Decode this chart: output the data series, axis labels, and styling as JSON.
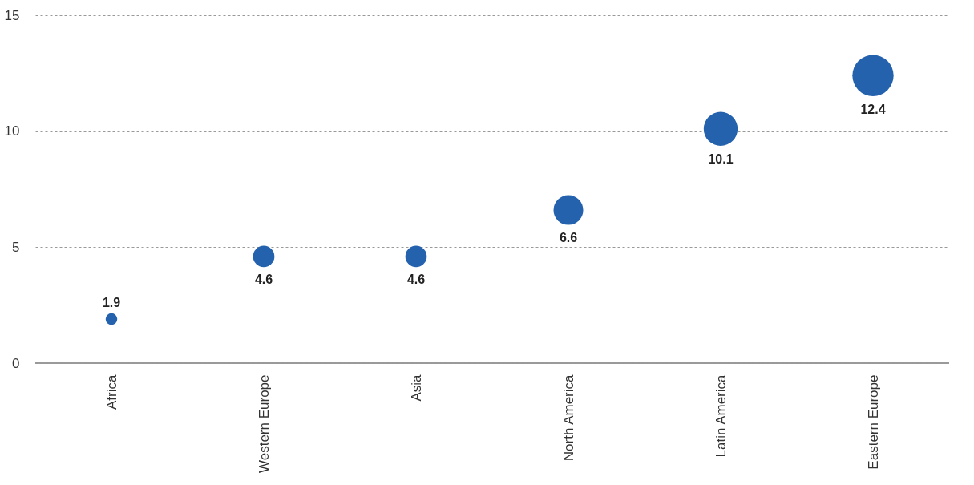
{
  "chart_data": {
    "type": "bubble",
    "categories": [
      "Africa",
      "Western Europe",
      "Asia",
      "North America",
      "Latin America",
      "Eastern Europe"
    ],
    "values": [
      1.9,
      4.6,
      4.6,
      6.6,
      10.1,
      12.4
    ],
    "sizes": [
      0.08,
      0.27,
      0.27,
      0.52,
      0.68,
      1
    ],
    "color": "#2462ad",
    "ylim": [
      0,
      15
    ],
    "yticks": [
      0,
      5,
      10,
      15
    ],
    "grid": "y",
    "data_labels": true
  }
}
